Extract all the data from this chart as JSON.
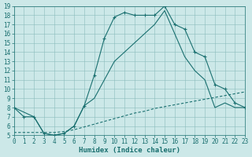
{
  "xlabel": "Humidex (Indice chaleur)",
  "xlim": [
    0,
    23
  ],
  "ylim": [
    5,
    19
  ],
  "xticks": [
    0,
    1,
    2,
    3,
    4,
    5,
    6,
    7,
    8,
    9,
    10,
    11,
    12,
    13,
    14,
    15,
    16,
    17,
    18,
    19,
    20,
    21,
    22,
    23
  ],
  "yticks": [
    5,
    6,
    7,
    8,
    9,
    10,
    11,
    12,
    13,
    14,
    15,
    16,
    17,
    18,
    19
  ],
  "bg_color": "#cce8e8",
  "line_color": "#1a7070",
  "line1_x": [
    0,
    1,
    2,
    3,
    4,
    5,
    6,
    7,
    8,
    9,
    10,
    11,
    12,
    13,
    14,
    15,
    16,
    17,
    18,
    19,
    20,
    21,
    22,
    23
  ],
  "line1_y": [
    8.0,
    7.0,
    7.0,
    5.2,
    5.0,
    5.2,
    6.0,
    8.2,
    11.5,
    15.5,
    17.8,
    18.3,
    18.0,
    18.0,
    18.0,
    19.0,
    17.0,
    16.5,
    14.0,
    13.5,
    10.5,
    10.0,
    8.5,
    8.0
  ],
  "line2_x": [
    0,
    1,
    2,
    3,
    4,
    5,
    6,
    7,
    8,
    9,
    10,
    11,
    12,
    13,
    14,
    15,
    16,
    17,
    18,
    19,
    20,
    21,
    22,
    23
  ],
  "line2_y": [
    5.3,
    5.3,
    5.3,
    5.3,
    5.3,
    5.4,
    5.6,
    5.9,
    6.2,
    6.5,
    6.8,
    7.1,
    7.4,
    7.6,
    7.9,
    8.1,
    8.3,
    8.5,
    8.7,
    8.9,
    9.1,
    9.3,
    9.5,
    9.7
  ],
  "line3_x": [
    0,
    2,
    3,
    4,
    5,
    6,
    7,
    8,
    9,
    10,
    11,
    12,
    13,
    14,
    15,
    16,
    17,
    18,
    19,
    20,
    21,
    22,
    23
  ],
  "line3_y": [
    8.0,
    7.0,
    5.2,
    5.0,
    5.2,
    6.0,
    8.2,
    9.0,
    11.0,
    13.0,
    14.0,
    15.0,
    16.0,
    17.0,
    18.5,
    16.0,
    13.5,
    12.0,
    11.0,
    8.0,
    8.5,
    8.0,
    8.0
  ],
  "font_family": "monospace",
  "tick_fontsize": 5.5,
  "label_fontsize": 6.5
}
